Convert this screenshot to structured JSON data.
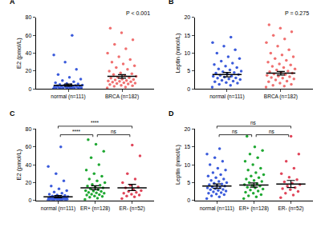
{
  "chart_data": [
    {
      "type": "scatter",
      "title": "A",
      "y_label": "E2 (pmol/L)",
      "categories": [
        "normal (n=111)",
        "BRCA (n=182)"
      ],
      "ylim": [
        0,
        80
      ],
      "yticks": [
        0,
        20,
        40,
        60,
        80
      ],
      "annotations": [
        "P < 0.001"
      ],
      "groups": [
        {
          "color": "#3b5bdb",
          "mean": 4,
          "error_low": 3,
          "error_high": 5.5,
          "values": [
            0.2,
            0.3,
            0.5,
            0.6,
            0.8,
            1,
            1,
            1.2,
            1.4,
            1.5,
            1.7,
            2,
            2.1,
            2.3,
            2.5,
            2.8,
            3,
            3.2,
            3.5,
            3.8,
            4,
            4.3,
            4.7,
            5,
            5.5,
            6,
            7,
            8,
            9.5,
            11,
            13,
            16,
            22,
            30,
            38,
            60
          ]
        },
        {
          "color": "#f07070",
          "mean": 14,
          "error_low": 12,
          "error_high": 16,
          "values": [
            1,
            2,
            3,
            3.5,
            4,
            5,
            5.5,
            6,
            6.5,
            7,
            7.5,
            8,
            8.5,
            9,
            9.5,
            10,
            10.5,
            11,
            12,
            12.5,
            13,
            14,
            15,
            16,
            17,
            18,
            20,
            22,
            24,
            26,
            28,
            30,
            33,
            36,
            40,
            45,
            50,
            55,
            63,
            68
          ]
        }
      ]
    },
    {
      "type": "scatter",
      "title": "B",
      "y_label": "Leptin (nmol/L)",
      "categories": [
        "normal (n=111)",
        "BRCA (n=182)"
      ],
      "ylim": [
        0,
        20
      ],
      "yticks": [
        0,
        5,
        10,
        15,
        20
      ],
      "annotations": [
        "P = 0.275"
      ],
      "groups": [
        {
          "color": "#3b5bdb",
          "mean": 4,
          "error_low": 3.4,
          "error_high": 4.6,
          "values": [
            0.5,
            1,
            1.3,
            1.6,
            1.8,
            2,
            2.2,
            2.4,
            2.6,
            2.8,
            3,
            3.1,
            3.3,
            3.5,
            3.6,
            3.8,
            4,
            4.2,
            4.4,
            4.6,
            4.8,
            5,
            5.3,
            5.6,
            6,
            6.4,
            6.8,
            7.2,
            7.8,
            8.5,
            9,
            10,
            11,
            12,
            13,
            14.5
          ]
        },
        {
          "color": "#f07070",
          "mean": 4.4,
          "error_low": 3.9,
          "error_high": 4.9,
          "values": [
            0.5,
            0.8,
            1,
            1.3,
            1.6,
            2,
            2.2,
            2.5,
            2.8,
            3,
            3.2,
            3.4,
            3.6,
            3.8,
            4,
            4.2,
            4.4,
            4.6,
            4.8,
            5,
            5.3,
            5.6,
            6,
            6.3,
            6.7,
            7,
            7.5,
            8,
            8.5,
            9,
            9.5,
            10,
            11,
            12,
            13,
            14,
            15,
            16,
            17,
            18
          ]
        }
      ]
    },
    {
      "type": "scatter",
      "title": "C",
      "y_label": "E2 (pmol/L)",
      "categories": [
        "normal (n=111)",
        "ER+ (n=128)",
        "ER- (n=52)"
      ],
      "ylim": [
        0,
        80
      ],
      "yticks": [
        0,
        20,
        40,
        60,
        80
      ],
      "comparisons": [
        {
          "pair": [
            "normal (n=111)",
            "ER- (n=52)"
          ],
          "label": "****"
        },
        {
          "pair": [
            "normal (n=111)",
            "ER+ (n=128)"
          ],
          "label": "****"
        },
        {
          "pair": [
            "ER+ (n=128)",
            "ER- (n=52)"
          ],
          "label": "ns"
        }
      ],
      "groups": [
        {
          "color": "#3b5bdb",
          "mean": 4,
          "error_low": 3,
          "error_high": 5.5,
          "values": [
            0.2,
            0.3,
            0.5,
            0.6,
            0.8,
            1,
            1,
            1.2,
            1.4,
            1.5,
            1.7,
            2,
            2.1,
            2.3,
            2.5,
            2.8,
            3,
            3.2,
            3.5,
            3.8,
            4,
            4.3,
            4.7,
            5,
            5.5,
            6,
            7,
            8,
            9.5,
            11,
            13,
            16,
            22,
            30,
            38,
            60
          ]
        },
        {
          "color": "#1fa832",
          "mean": 14,
          "error_low": 12,
          "error_high": 16.5,
          "values": [
            1,
            2.5,
            3.5,
            4.5,
            5,
            6,
            6.5,
            7,
            8,
            8.5,
            9,
            10,
            10.5,
            11,
            12,
            13,
            14,
            15,
            16,
            17,
            18,
            20,
            22,
            24,
            27,
            30,
            34,
            40,
            48,
            55,
            63,
            68
          ]
        },
        {
          "color": "#e0455a",
          "mean": 14,
          "error_low": 11,
          "error_high": 18,
          "values": [
            2,
            4,
            5,
            6,
            7,
            8,
            9,
            10,
            11,
            12,
            14,
            15,
            17,
            20,
            24,
            30,
            50,
            62
          ]
        }
      ]
    },
    {
      "type": "scatter",
      "title": "D",
      "y_label": "Leptin (nmol/L)",
      "categories": [
        "normal (n=111)",
        "ER+ (n=128)",
        "ER- (n=52)"
      ],
      "ylim": [
        0,
        20
      ],
      "yticks": [
        0,
        5,
        10,
        15,
        20
      ],
      "comparisons": [
        {
          "pair": [
            "normal (n=111)",
            "ER- (n=52)"
          ],
          "label": "ns"
        },
        {
          "pair": [
            "normal (n=111)",
            "ER+ (n=128)"
          ],
          "label": "ns"
        },
        {
          "pair": [
            "ER+ (n=128)",
            "ER- (n=52)"
          ],
          "label": "ns"
        }
      ],
      "groups": [
        {
          "color": "#3b5bdb",
          "mean": 4,
          "error_low": 3.4,
          "error_high": 4.6,
          "values": [
            0.5,
            1,
            1.3,
            1.6,
            1.8,
            2,
            2.2,
            2.4,
            2.6,
            2.8,
            3,
            3.1,
            3.3,
            3.5,
            3.6,
            3.8,
            4,
            4.2,
            4.4,
            4.6,
            4.8,
            5,
            5.3,
            5.6,
            6,
            6.4,
            6.8,
            7.2,
            7.8,
            8.5,
            9,
            10,
            11,
            12,
            13,
            14.5
          ]
        },
        {
          "color": "#1fa832",
          "mean": 4.3,
          "error_low": 3.7,
          "error_high": 4.9,
          "values": [
            0.5,
            1,
            1.3,
            1.6,
            2,
            2.3,
            2.6,
            2.9,
            3.2,
            3.5,
            3.7,
            4,
            4.2,
            4.4,
            4.7,
            5,
            5.3,
            5.6,
            6,
            6.4,
            6.8,
            7.2,
            7.8,
            8.5,
            9,
            10,
            11,
            12,
            13,
            14,
            15,
            18
          ]
        },
        {
          "color": "#e0455a",
          "mean": 4.6,
          "error_low": 3.6,
          "error_high": 5.6,
          "values": [
            0.8,
            1.5,
            2,
            2.5,
            3,
            3.3,
            3.6,
            4,
            4.4,
            4.8,
            5.2,
            5.8,
            6.5,
            7.5,
            9,
            11,
            13,
            18
          ]
        }
      ]
    }
  ]
}
